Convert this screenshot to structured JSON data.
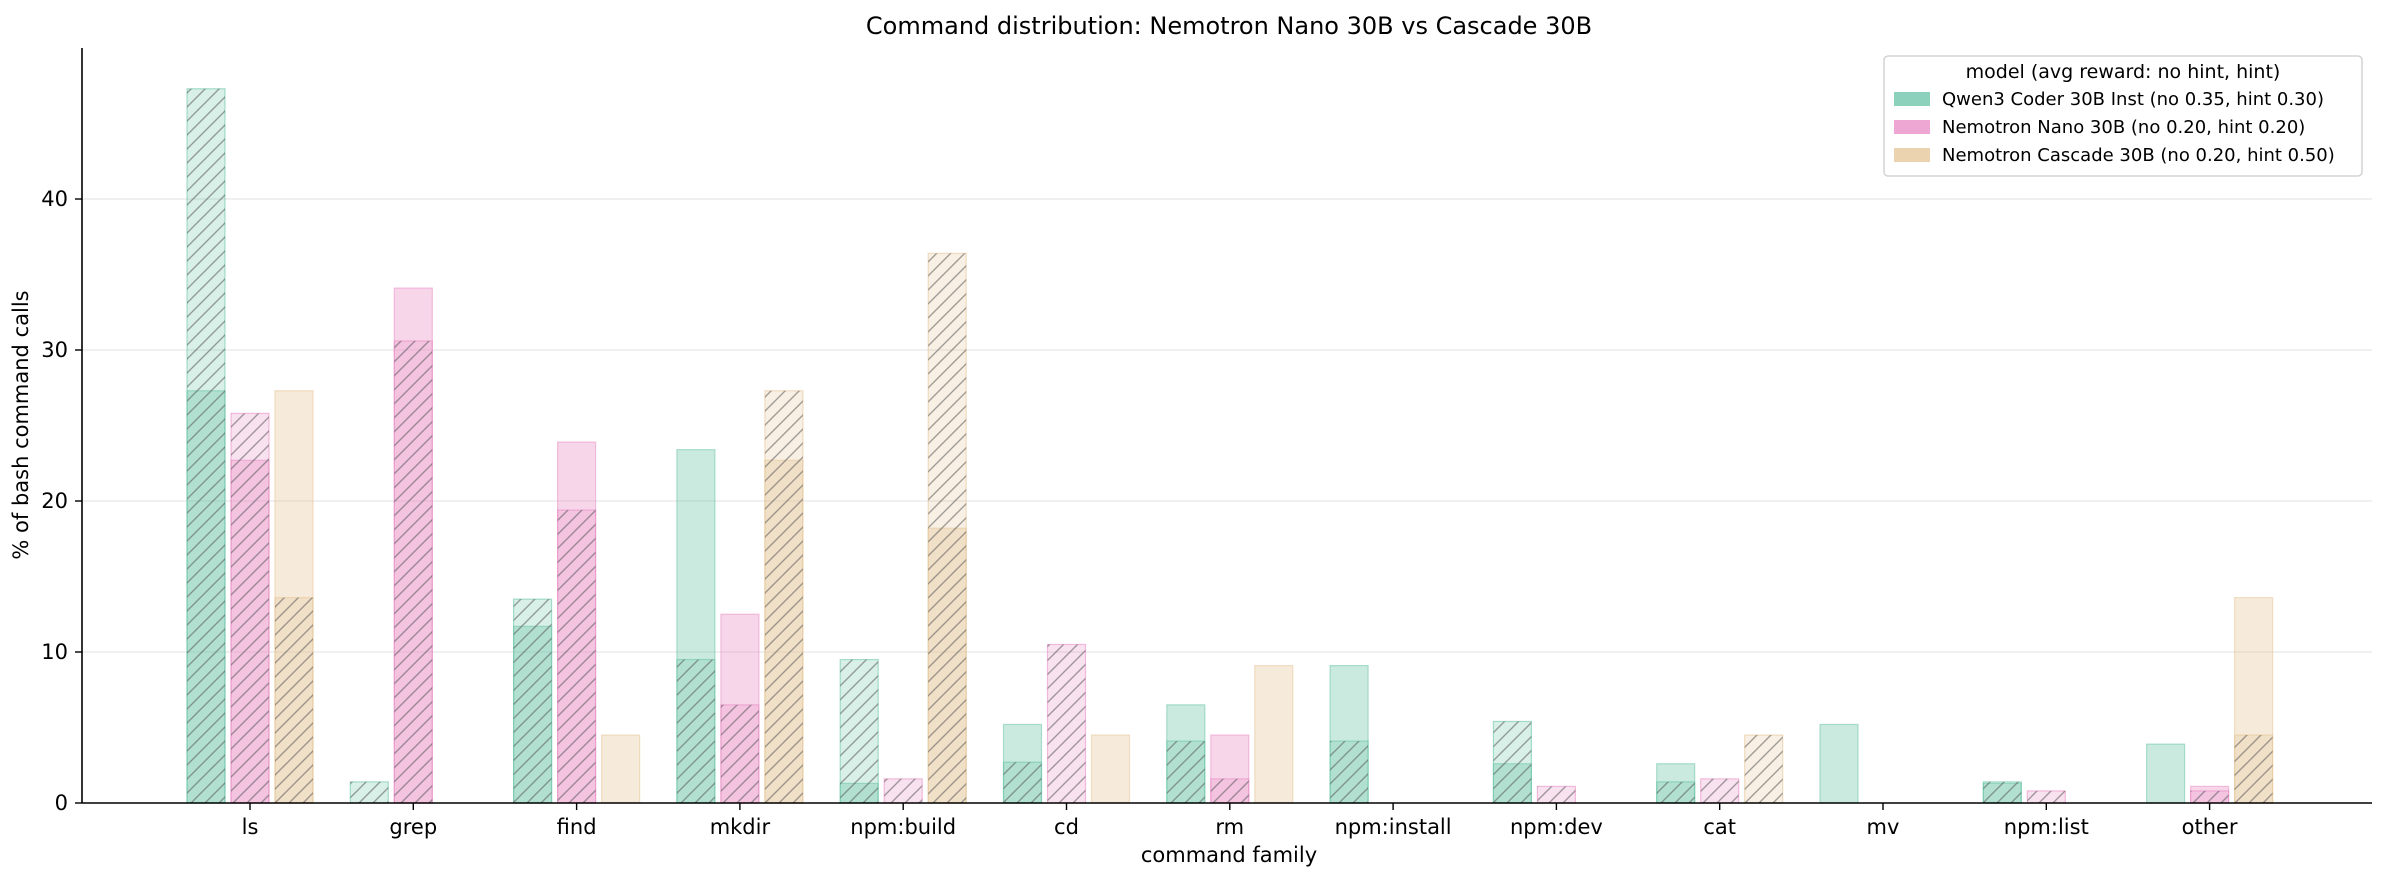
{
  "chart_data": {
    "type": "bar",
    "title": "Command distribution: Nemotron Nano 30B vs Cascade 30B",
    "xlabel": "command family",
    "ylabel": "% of bash command calls",
    "ylim": [
      0,
      50
    ],
    "yticks": [
      0,
      10,
      20,
      30,
      40
    ],
    "grid": "horizontal",
    "legend": {
      "title": "model (avg reward: no hint, hint)",
      "placement": "top-right"
    },
    "categories": [
      "ls",
      "grep",
      "find",
      "mkdir",
      "npm:build",
      "cd",
      "rm",
      "npm:install",
      "npm:dev",
      "cat",
      "mv",
      "npm:list",
      "other"
    ],
    "encoding": {
      "solid_bar": "no hint",
      "hatched_bar": "hint"
    },
    "series": [
      {
        "name": "Qwen3 Coder 30B Inst (no 0.35, hint 0.30)",
        "color": "#66c2a5",
        "no_hint": [
          27.3,
          0,
          11.7,
          23.4,
          1.3,
          5.2,
          6.5,
          9.1,
          2.6,
          2.6,
          5.2,
          1.3,
          3.9
        ],
        "hint": [
          47.3,
          1.4,
          13.5,
          9.5,
          9.5,
          2.7,
          4.1,
          4.1,
          5.4,
          1.4,
          0,
          1.4,
          0
        ]
      },
      {
        "name": "Nemotron Nano 30B (no 0.20, hint 0.20)",
        "color": "#e78ac3",
        "no_hint": [
          22.7,
          34.1,
          23.9,
          12.5,
          0,
          0,
          4.5,
          0,
          0,
          0,
          0,
          0,
          1.1
        ],
        "hint": [
          25.8,
          30.6,
          19.4,
          6.5,
          1.6,
          10.5,
          1.6,
          0,
          1.1,
          1.6,
          0,
          0.8,
          0.8
        ]
      },
      {
        "name": "Nemotron Cascade 30B (no 0.20, hint 0.50)",
        "color": "#e5c494",
        "no_hint": [
          27.3,
          0,
          4.5,
          22.7,
          18.2,
          4.5,
          9.1,
          0,
          0,
          0,
          0,
          0,
          13.6
        ],
        "hint": [
          13.6,
          0,
          0,
          27.3,
          36.4,
          0,
          0,
          0,
          0,
          4.5,
          0,
          0,
          4.5
        ]
      }
    ]
  }
}
